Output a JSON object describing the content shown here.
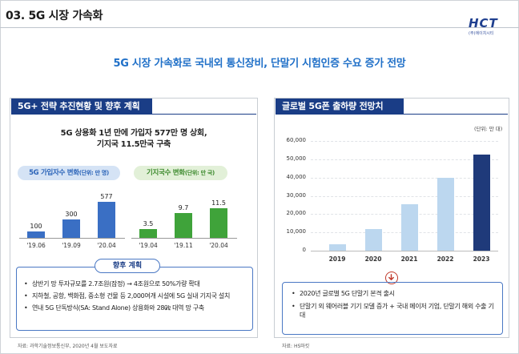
{
  "page": {
    "title": "03. 5G 시장 가속화",
    "headline": "5G 시장 가속화로 국내외 통신장비, 단말기 시험인증 수요 증가 전망"
  },
  "logo": {
    "text": "HCT",
    "subtitle": "(주)에이치시티"
  },
  "colors": {
    "header_navy": "#1a3d86",
    "accent_blue": "#2070c8",
    "bar_blue": "#3a6fc4",
    "bar_green": "#3fa33a",
    "bar_light_blue": "#bcd7ef",
    "bar_dark_navy": "#1f3a7a",
    "arrow_red": "#c0392b"
  },
  "left_panel": {
    "header": "5G+ 전략 추진현황 및 향후 계획",
    "summary_line1": "5G 상용화 1년 만에 가입자 577만 명 상회,",
    "summary_line2": "기지국 11.5만국 구축",
    "subscribers": {
      "label": "5G 가입자수 변화",
      "unit": "(단위: 만 명)",
      "periods": [
        "'19.06",
        "'19.09",
        "'20.04"
      ],
      "values": [
        100,
        300,
        577
      ],
      "value_labels": [
        "100",
        "300",
        "577"
      ]
    },
    "base_stations": {
      "label": "기지국수 변화",
      "unit": "(단위: 만 국)",
      "periods": [
        "'19.04",
        "'19.11",
        "'20.04"
      ],
      "values": [
        3.5,
        9.7,
        11.5
      ],
      "value_labels": [
        "3.5",
        "9.7",
        "11.5"
      ]
    },
    "outlook": {
      "title": "향후 계획",
      "bullets": [
        "상반기 망 투자규모를 2.7조원(잠정) → 4조원으로 50%가량 확대",
        "지하철, 공항, 백화점, 중소형 건물 등 2,000여개 시설에 5G 실내 기지국 설치",
        "연내 5G 단독방식(SA: Stand Alone) 상용화와 28㎓ 대역 망 구축"
      ]
    },
    "source": "자료: 과학기술정보통신부, 2020년 4월 보도자료"
  },
  "right_panel": {
    "header": "글로벌 5G폰 출하량 전망치",
    "forecast": [
      "2020년 글로벌 5G 단말기 본격 출시",
      "단말기 외 웨어러블 기기 모델 증가 + 국내 메이저 기업, 단말기 해외 수출 기대"
    ],
    "source": "자료: HS마킷"
  },
  "chart_data": [
    {
      "type": "bar",
      "title": "5G 가입자수 변화",
      "unit": "만 명",
      "categories": [
        "'19.06",
        "'19.09",
        "'20.04"
      ],
      "values": [
        100,
        300,
        577
      ]
    },
    {
      "type": "bar",
      "title": "기지국수 변화",
      "unit": "만 국",
      "categories": [
        "'19.04",
        "'19.11",
        "'20.04"
      ],
      "values": [
        3.5,
        9.7,
        11.5
      ]
    },
    {
      "type": "bar",
      "title": "글로벌 5G폰 출하량 전망치",
      "unit_label": "(단위: 만 대)",
      "categories": [
        "2019",
        "2020",
        "2021",
        "2022",
        "2023"
      ],
      "values": [
        3500,
        12000,
        25500,
        40000,
        52500
      ],
      "ylim": [
        0,
        60000
      ],
      "y_ticks": [
        "0",
        "10,000",
        "20,000",
        "30,000",
        "40,000",
        "50,000",
        "60,000"
      ],
      "y_tick_values": [
        0,
        10000,
        20000,
        30000,
        40000,
        50000,
        60000
      ]
    }
  ]
}
